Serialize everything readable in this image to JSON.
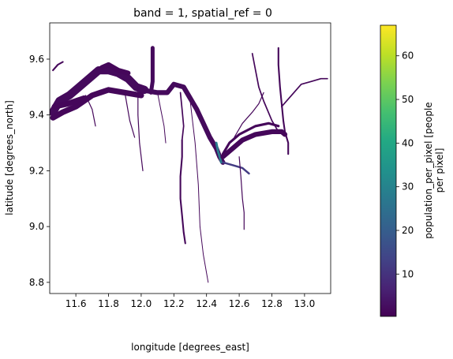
{
  "chart_data": {
    "type": "heatmap",
    "title": "band = 1, spatial_ref = 0",
    "xlabel": "longitude [degrees_east]",
    "ylabel": "latitude [degrees_north]",
    "xlim": [
      11.44,
      13.16
    ],
    "ylim": [
      8.76,
      9.73
    ],
    "x_ticks": [
      {
        "value": 11.6,
        "label": "11.6"
      },
      {
        "value": 11.8,
        "label": "11.8"
      },
      {
        "value": 12.0,
        "label": "12.0"
      },
      {
        "value": 12.2,
        "label": "12.2"
      },
      {
        "value": 12.4,
        "label": "12.4"
      },
      {
        "value": 12.6,
        "label": "12.6"
      },
      {
        "value": 12.8,
        "label": "12.8"
      },
      {
        "value": 13.0,
        "label": "13.0"
      }
    ],
    "y_ticks": [
      {
        "value": 8.8,
        "label": "8.8"
      },
      {
        "value": 9.0,
        "label": "9.0"
      },
      {
        "value": 9.2,
        "label": "9.2"
      },
      {
        "value": 9.4,
        "label": "9.4"
      },
      {
        "value": 9.6,
        "label": "9.6"
      }
    ],
    "grid": false,
    "colorbar": {
      "label_line1": "population_per_pixel [people",
      "label_line2": "per pixel]",
      "colormap": "viridis",
      "range": [
        0.3,
        67
      ],
      "ticks": [
        {
          "value": 10,
          "label": "10"
        },
        {
          "value": 20,
          "label": "20"
        },
        {
          "value": 30,
          "label": "30"
        },
        {
          "value": 40,
          "label": "40"
        },
        {
          "value": 50,
          "label": "50"
        },
        {
          "value": 60,
          "label": "60"
        }
      ]
    },
    "settlements": [
      {
        "path": [
          [
            11.46,
            9.41
          ],
          [
            11.5,
            9.45
          ],
          [
            11.56,
            9.47
          ],
          [
            11.62,
            9.5
          ],
          [
            11.68,
            9.53
          ],
          [
            11.74,
            9.56
          ],
          [
            11.8,
            9.56
          ],
          [
            11.86,
            9.55
          ],
          [
            11.92,
            9.53
          ],
          [
            11.97,
            9.5
          ],
          [
            12.02,
            9.49
          ]
        ],
        "width": 0.05,
        "value": 2
      },
      {
        "path": [
          [
            11.46,
            9.39
          ],
          [
            11.52,
            9.41
          ],
          [
            11.6,
            9.43
          ],
          [
            11.7,
            9.47
          ],
          [
            11.8,
            9.49
          ],
          [
            11.9,
            9.48
          ],
          [
            12.0,
            9.47
          ]
        ],
        "width": 0.035,
        "value": 1.5
      },
      {
        "path": [
          [
            11.47,
            9.43
          ],
          [
            11.55,
            9.44
          ],
          [
            11.65,
            9.46
          ]
        ],
        "width": 0.035,
        "value": 1.5
      },
      {
        "path": [
          [
            12.0,
            9.49
          ],
          [
            12.1,
            9.48
          ],
          [
            12.16,
            9.48
          ],
          [
            12.2,
            9.51
          ],
          [
            12.26,
            9.5
          ],
          [
            12.3,
            9.46
          ],
          [
            12.34,
            9.42
          ],
          [
            12.38,
            9.37
          ],
          [
            12.42,
            9.32
          ],
          [
            12.46,
            9.28
          ],
          [
            12.48,
            9.25
          ],
          [
            12.5,
            9.23
          ]
        ],
        "width": 0.03,
        "value": 2
      },
      {
        "path": [
          [
            12.46,
            9.3
          ],
          [
            12.47,
            9.27
          ],
          [
            12.48,
            9.25
          ],
          [
            12.49,
            9.23
          ]
        ],
        "width": 0.014,
        "value": 28
      },
      {
        "path": [
          [
            12.5,
            9.23
          ],
          [
            12.56,
            9.22
          ],
          [
            12.62,
            9.21
          ],
          [
            12.66,
            9.19
          ]
        ],
        "width": 0.012,
        "value": 12
      },
      {
        "path": [
          [
            12.5,
            9.25
          ],
          [
            12.56,
            9.28
          ],
          [
            12.62,
            9.31
          ],
          [
            12.7,
            9.33
          ],
          [
            12.8,
            9.34
          ],
          [
            12.86,
            9.34
          ],
          [
            12.88,
            9.33
          ]
        ],
        "width": 0.03,
        "value": 1.5
      },
      {
        "path": [
          [
            12.5,
            9.26
          ],
          [
            12.54,
            9.3
          ],
          [
            12.6,
            9.33
          ],
          [
            12.7,
            9.36
          ],
          [
            12.78,
            9.37
          ],
          [
            12.84,
            9.36
          ]
        ],
        "width": 0.015,
        "value": 1.5
      },
      {
        "path": [
          [
            12.07,
            9.64
          ],
          [
            12.07,
            9.58
          ],
          [
            12.07,
            9.52
          ],
          [
            12.06,
            9.48
          ]
        ],
        "width": 0.024,
        "value": 2
      },
      {
        "path": [
          [
            11.76,
            9.57
          ],
          [
            11.8,
            9.58
          ],
          [
            11.86,
            9.56
          ],
          [
            11.92,
            9.55
          ]
        ],
        "width": 0.03,
        "value": 1.5
      },
      {
        "path": [
          [
            12.84,
            9.64
          ],
          [
            12.84,
            9.58
          ],
          [
            12.85,
            9.5
          ],
          [
            12.86,
            9.44
          ],
          [
            12.87,
            9.38
          ],
          [
            12.88,
            9.34
          ],
          [
            12.9,
            9.3
          ],
          [
            12.9,
            9.26
          ]
        ],
        "width": 0.01,
        "value": 1.5
      },
      {
        "path": [
          [
            12.86,
            9.43
          ],
          [
            12.92,
            9.47
          ],
          [
            12.98,
            9.51
          ],
          [
            13.04,
            9.52
          ],
          [
            13.1,
            9.53
          ],
          [
            13.14,
            9.53
          ]
        ],
        "width": 0.008,
        "value": 1.5
      },
      {
        "path": [
          [
            12.68,
            9.62
          ],
          [
            12.7,
            9.56
          ],
          [
            12.72,
            9.5
          ],
          [
            12.75,
            9.45
          ],
          [
            12.8,
            9.38
          ],
          [
            12.84,
            9.34
          ]
        ],
        "width": 0.008,
        "value": 1.5
      },
      {
        "path": [
          [
            12.75,
            9.48
          ],
          [
            12.72,
            9.44
          ],
          [
            12.68,
            9.41
          ],
          [
            12.62,
            9.37
          ],
          [
            12.57,
            9.32
          ]
        ],
        "width": 0.006,
        "value": 1.5
      },
      {
        "path": [
          [
            12.25,
            9.31
          ],
          [
            12.25,
            9.25
          ],
          [
            12.24,
            9.18
          ],
          [
            12.24,
            9.1
          ],
          [
            12.25,
            9.04
          ],
          [
            12.26,
            8.98
          ],
          [
            12.27,
            8.94
          ]
        ],
        "width": 0.01,
        "value": 1.5
      },
      {
        "path": [
          [
            12.24,
            9.48
          ],
          [
            12.25,
            9.42
          ],
          [
            12.26,
            9.36
          ],
          [
            12.25,
            9.31
          ]
        ],
        "width": 0.008,
        "value": 1.5
      },
      {
        "path": [
          [
            12.3,
            9.45
          ],
          [
            12.33,
            9.3
          ],
          [
            12.35,
            9.15
          ],
          [
            12.36,
            9.0
          ],
          [
            12.38,
            8.9
          ],
          [
            12.41,
            8.8
          ]
        ],
        "width": 0.004,
        "value": 1.5
      },
      {
        "path": [
          [
            12.6,
            9.25
          ],
          [
            12.61,
            9.18
          ],
          [
            12.62,
            9.1
          ],
          [
            12.63,
            9.05
          ],
          [
            12.63,
            8.99
          ]
        ],
        "width": 0.006,
        "value": 1.5
      },
      {
        "path": [
          [
            11.66,
            9.47
          ],
          [
            11.7,
            9.42
          ],
          [
            11.72,
            9.36
          ]
        ],
        "width": 0.006,
        "value": 1.5
      },
      {
        "path": [
          [
            11.9,
            9.48
          ],
          [
            11.93,
            9.38
          ],
          [
            11.96,
            9.32
          ]
        ],
        "width": 0.006,
        "value": 1.5
      },
      {
        "path": [
          [
            12.1,
            9.48
          ],
          [
            12.12,
            9.42
          ],
          [
            12.14,
            9.36
          ],
          [
            12.15,
            9.3
          ]
        ],
        "width": 0.005,
        "value": 1.5
      },
      {
        "path": [
          [
            11.98,
            9.5
          ],
          [
            11.98,
            9.4
          ],
          [
            11.99,
            9.3
          ],
          [
            12.0,
            9.25
          ],
          [
            12.01,
            9.2
          ]
        ],
        "width": 0.006,
        "value": 1.5
      },
      {
        "path": [
          [
            11.46,
            9.56
          ],
          [
            11.49,
            9.58
          ],
          [
            11.52,
            9.59
          ]
        ],
        "width": 0.01,
        "value": 1.5
      }
    ]
  }
}
